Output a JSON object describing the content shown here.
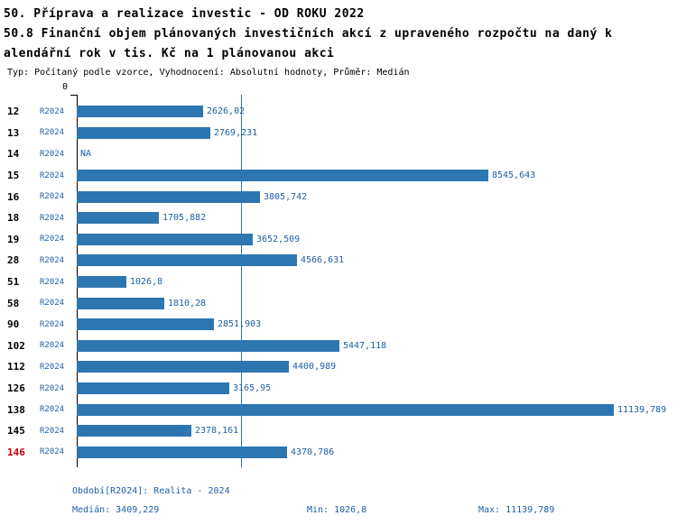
{
  "header": {
    "title_line1": "50. Příprava a realizace investic - OD ROKU 2022",
    "title_line2": "50.8 Finanční objem plánovaných investičních akcí z upraveného rozpočtu na daný k",
    "title_line3": "alendářní rok v tis. Kč na 1 plánovanou akci",
    "subtitle": "Typ: Počítaný podle vzorce, Vyhodnocení: Absolutní hodnoty, Průměr: Medián"
  },
  "chart_data": {
    "type": "bar",
    "orientation": "horizontal",
    "title": "50.8 Finanční objem plánovaných investičních akcí z upraveného rozpočtu na daný kalendářní rok v tis. Kč na 1 plánovanou akci",
    "axis_zero_label": "0",
    "xlim": [
      0,
      11139.789
    ],
    "median": 3409.229,
    "min": 1026.8,
    "max": 11139.789,
    "highlight_category": "146",
    "na_label": "NA",
    "colors": {
      "bar": "#2e76b0",
      "text_blue": "#1f5fa6",
      "highlight_red": "#c00000",
      "axis": "#000000"
    },
    "rows": [
      {
        "category": "12",
        "series": "R2024",
        "value": 2626.02,
        "value_label": "2626,02"
      },
      {
        "category": "13",
        "series": "R2024",
        "value": 2769.231,
        "value_label": "2769,231"
      },
      {
        "category": "14",
        "series": "R2024",
        "value": null,
        "value_label": "NA"
      },
      {
        "category": "15",
        "series": "R2024",
        "value": 8545.643,
        "value_label": "8545,643"
      },
      {
        "category": "16",
        "series": "R2024",
        "value": 3805.742,
        "value_label": "3805,742"
      },
      {
        "category": "18",
        "series": "R2024",
        "value": 1705.882,
        "value_label": "1705,882"
      },
      {
        "category": "19",
        "series": "R2024",
        "value": 3652.509,
        "value_label": "3652,509"
      },
      {
        "category": "28",
        "series": "R2024",
        "value": 4566.631,
        "value_label": "4566,631"
      },
      {
        "category": "51",
        "series": "R2024",
        "value": 1026.8,
        "value_label": "1026,8"
      },
      {
        "category": "58",
        "series": "R2024",
        "value": 1810.28,
        "value_label": "1810,28"
      },
      {
        "category": "90",
        "series": "R2024",
        "value": 2851.903,
        "value_label": "2851,903"
      },
      {
        "category": "102",
        "series": "R2024",
        "value": 5447.118,
        "value_label": "5447,118"
      },
      {
        "category": "112",
        "series": "R2024",
        "value": 4400.989,
        "value_label": "4400,989"
      },
      {
        "category": "126",
        "series": "R2024",
        "value": 3165.95,
        "value_label": "3165,95"
      },
      {
        "category": "138",
        "series": "R2024",
        "value": 11139.789,
        "value_label": "11139,789"
      },
      {
        "category": "145",
        "series": "R2024",
        "value": 2378.161,
        "value_label": "2378,161"
      },
      {
        "category": "146",
        "series": "R2024",
        "value": 4370.786,
        "value_label": "4370,786"
      }
    ]
  },
  "footer": {
    "period": "Období[R2024]: Realita - 2024",
    "median": "Medián: 3409,229",
    "min": "Min: 1026,8",
    "max": "Max: 11139,789"
  }
}
